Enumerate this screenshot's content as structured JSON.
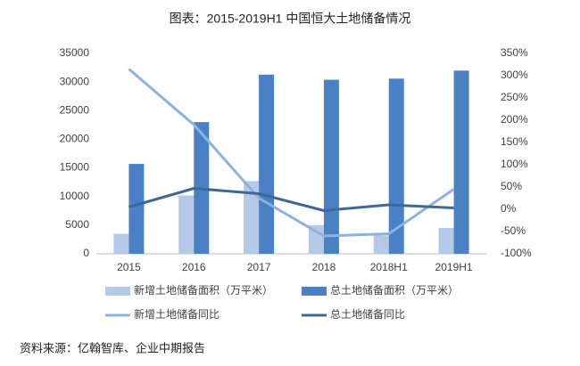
{
  "chart_data": {
    "type": "bar",
    "title": "图表：2015-2019H1 中国恒大土地储备情况",
    "source": "资料来源：亿翰智库、企业中期报告",
    "categories": [
      "2015",
      "2016",
      "2017",
      "2018",
      "2018H1",
      "2019H1"
    ],
    "series": [
      {
        "name": "新增土地储备面积（万平米）",
        "type": "bar",
        "color": "#b4c9e8",
        "values": [
          3500,
          10200,
          12700,
          5000,
          3200,
          4500
        ]
      },
      {
        "name": "总土地储备面积（万平米）",
        "type": "bar",
        "color": "#4a80c4",
        "values": [
          15700,
          23000,
          31300,
          30400,
          30600,
          32000
        ]
      },
      {
        "name": "新增土地储备同比",
        "type": "line",
        "axis": "y2",
        "color": "#8cb3df",
        "values": [
          315,
          190,
          25,
          -60,
          -55,
          45
        ]
      },
      {
        "name": "总土地储备同比",
        "type": "line",
        "axis": "y2",
        "color": "#3d6891",
        "values": [
          5,
          47,
          35,
          -3,
          10,
          3
        ]
      }
    ],
    "ylim": [
      0,
      35000
    ],
    "yticks": [
      0,
      5000,
      10000,
      15000,
      20000,
      25000,
      30000,
      35000
    ],
    "y2lim": [
      -100,
      350
    ],
    "y2ticks": [
      {
        "value": -100,
        "label": "-100%"
      },
      {
        "value": -50,
        "label": "-50%"
      },
      {
        "value": 0,
        "label": "0%"
      },
      {
        "value": 50,
        "label": "50%"
      },
      {
        "value": 100,
        "label": "100%"
      },
      {
        "value": 150,
        "label": "150%"
      },
      {
        "value": 200,
        "label": "200%"
      },
      {
        "value": 250,
        "label": "250%"
      },
      {
        "value": 300,
        "label": "300%"
      },
      {
        "value": 350,
        "label": "350%"
      }
    ]
  }
}
